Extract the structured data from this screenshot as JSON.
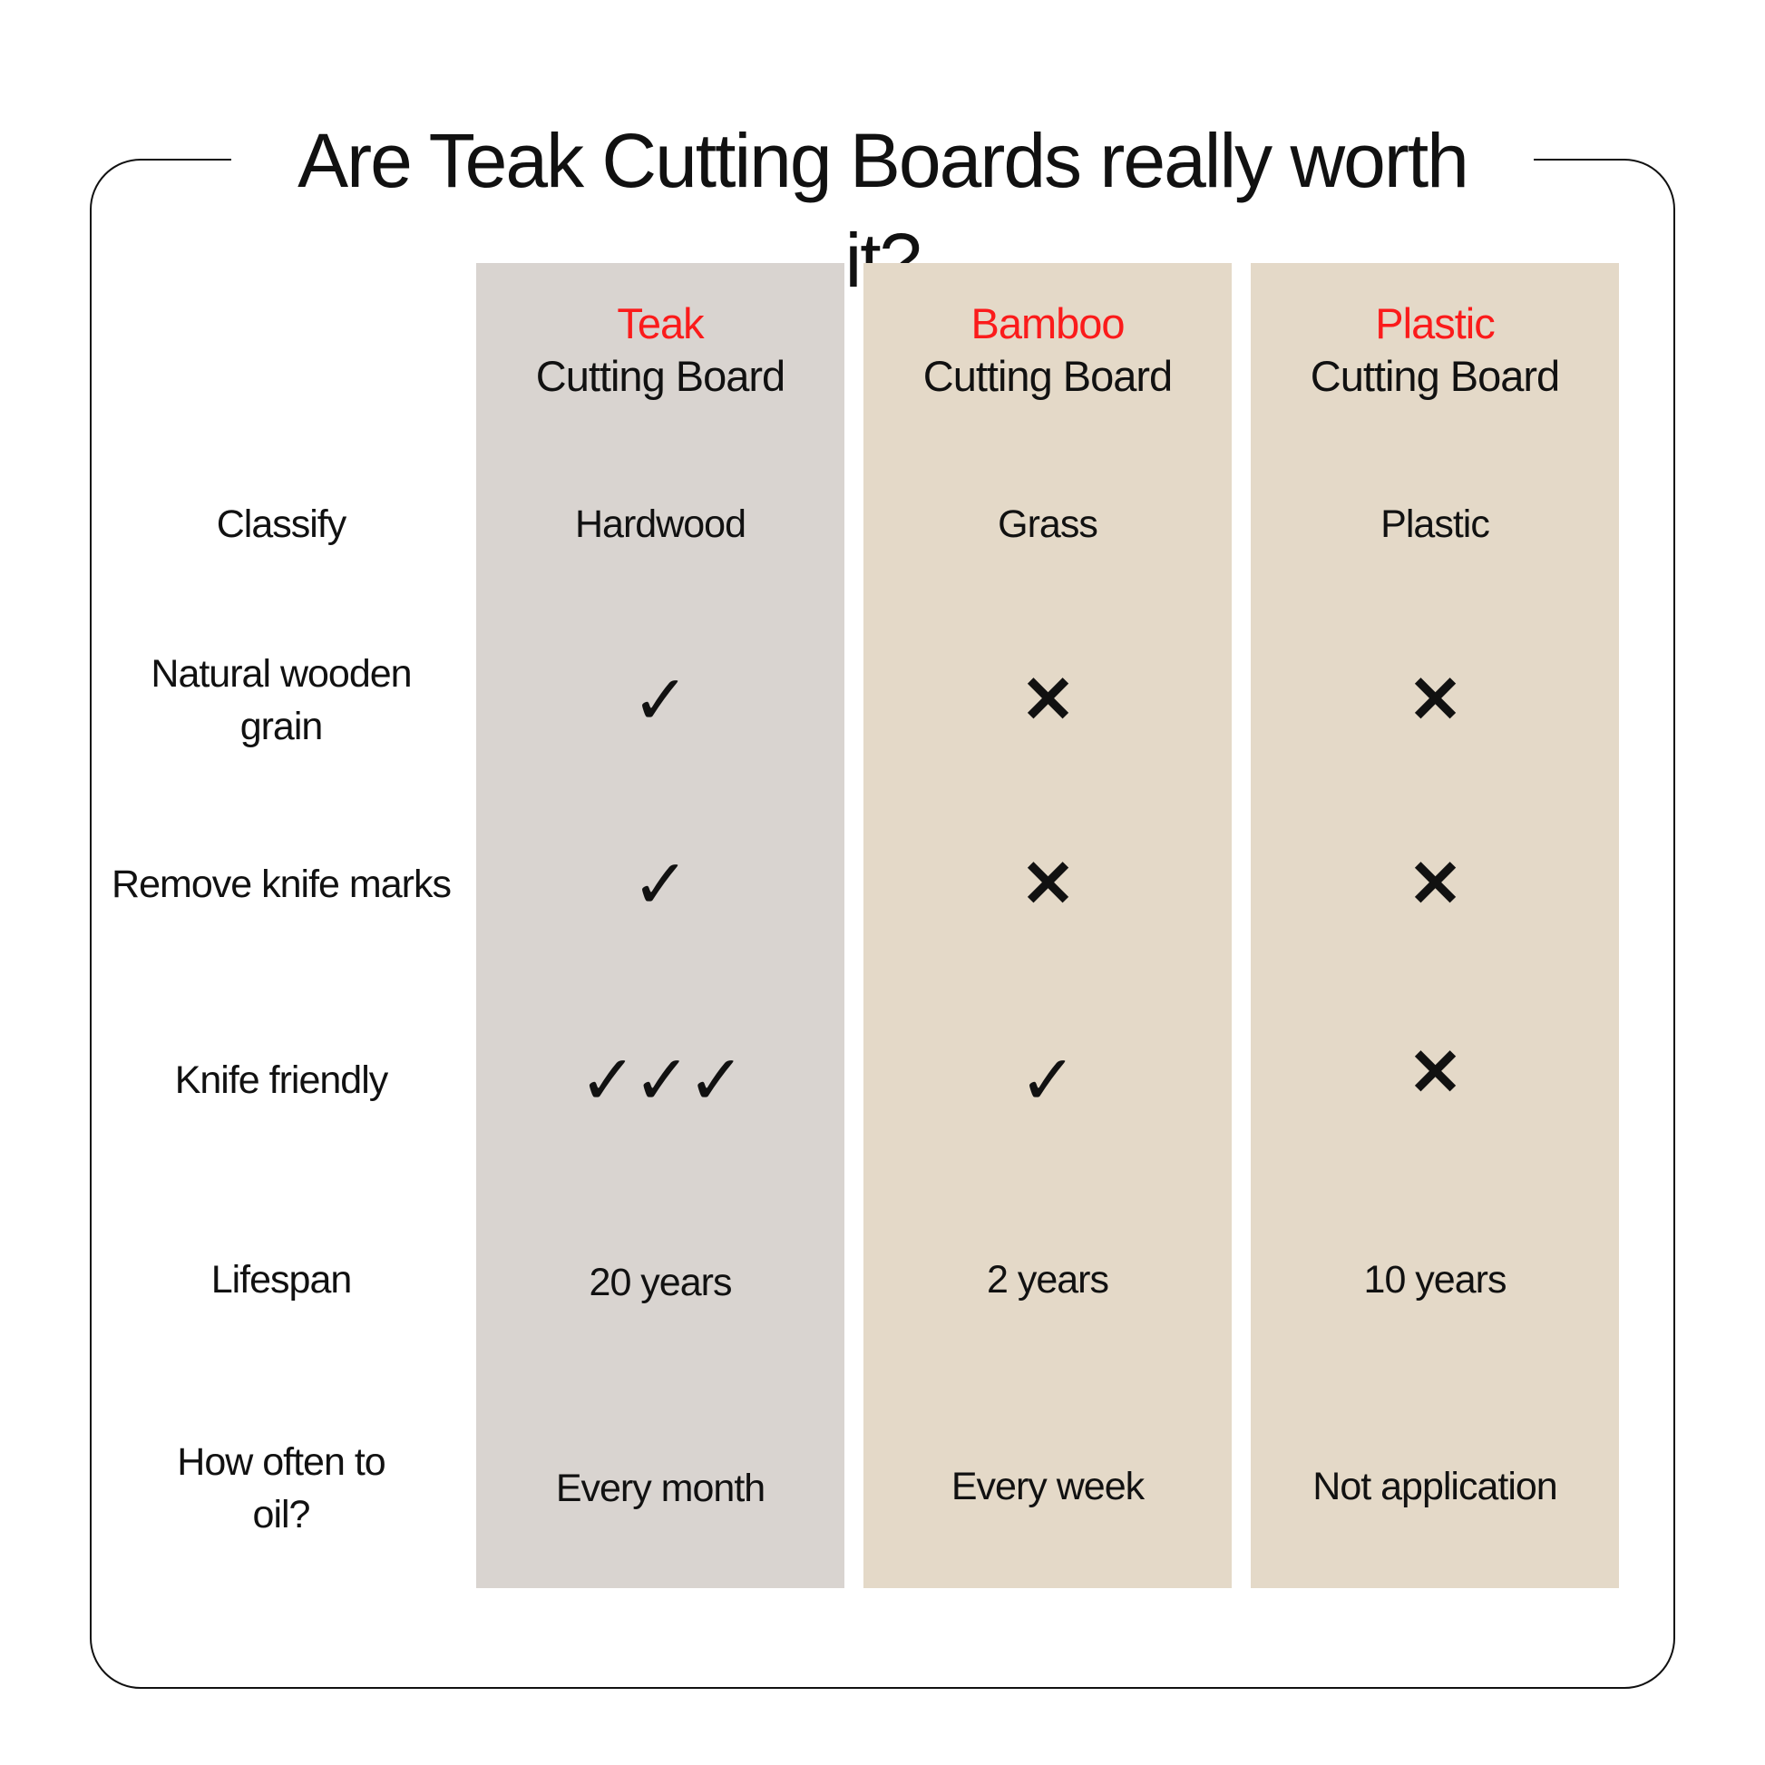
{
  "title": "Are Teak Cutting Boards really worth it?",
  "colors": {
    "teak_column": "#d9d4d0",
    "other_columns": "#e4d9c8",
    "highlight": "#fb1b1b"
  },
  "row_labels": [
    "Classify",
    "Natural wooden grain",
    "Remove knife marks",
    "Knife friendly",
    "Lifespan",
    "How often to oil?"
  ],
  "columns": [
    {
      "name": "Teak",
      "subtitle": "Cutting Board",
      "classify": "Hardwood",
      "natural_grain": "check-icon",
      "remove_marks": "check-icon",
      "knife_friendly": "✓✓✓",
      "lifespan": "20 years",
      "oil": "Every month"
    },
    {
      "name": "Bamboo",
      "subtitle": "Cutting Board",
      "classify": "Grass",
      "natural_grain": "x-icon",
      "remove_marks": "x-icon",
      "knife_friendly": "✓",
      "lifespan": "2 years",
      "oil": "Every week"
    },
    {
      "name": "Plastic",
      "subtitle": "Cutting Board",
      "classify": "Plastic",
      "natural_grain": "x-icon",
      "remove_marks": "x-icon",
      "knife_friendly": "✕",
      "lifespan": "10 years",
      "oil": "Not application"
    }
  ],
  "glyphs": {
    "check": "✓",
    "cross": "✕"
  }
}
